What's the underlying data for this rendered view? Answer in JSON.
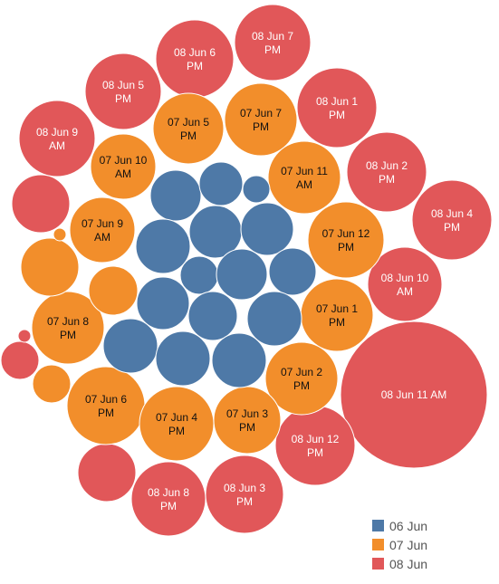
{
  "chart_data": {
    "type": "bubble",
    "title": "",
    "colors": {
      "06 Jun": "#4e79a7",
      "07 Jun": "#f28e2b",
      "08 Jun": "#e15759"
    },
    "legend": {
      "placement": "bottom-right",
      "entries": [
        "06 Jun",
        "07 Jun",
        "08 Jun"
      ]
    },
    "bubbles": [
      {
        "label": "08 Jun 11 AM",
        "group": "08 Jun",
        "value": 6500
      },
      {
        "label": "08 Jun 7 PM",
        "group": "08 Jun",
        "value": 1840
      },
      {
        "label": "08 Jun 6 PM",
        "group": "08 Jun",
        "value": 1840
      },
      {
        "label": "08 Jun 5 PM",
        "group": "08 Jun",
        "value": 1840
      },
      {
        "label": "08 Jun 1 PM",
        "group": "08 Jun",
        "value": 1840
      },
      {
        "label": "08 Jun 9 AM",
        "group": "08 Jun",
        "value": 1760
      },
      {
        "label": "08 Jun 2 PM",
        "group": "08 Jun",
        "value": 1920
      },
      {
        "label": "08 Jun 4 PM",
        "group": "08 Jun",
        "value": 1840
      },
      {
        "label": "08 Jun 10 AM",
        "group": "08 Jun",
        "value": 1640
      },
      {
        "label": "08 Jun 12 PM",
        "group": "08 Jun",
        "value": 1840
      },
      {
        "label": "08 Jun 8 PM",
        "group": "08 Jun",
        "value": 1680
      },
      {
        "label": "08 Jun 3 PM",
        "group": "08 Jun",
        "value": 1840
      },
      {
        "label": "",
        "group": "08 Jun",
        "value": 1000
      },
      {
        "label": "",
        "group": "08 Jun",
        "value": 870
      },
      {
        "label": "",
        "group": "08 Jun",
        "value": 420
      },
      {
        "label": "",
        "group": "08 Jun",
        "value": 40
      },
      {
        "label": "07 Jun 7 PM",
        "group": "07 Jun",
        "value": 1600
      },
      {
        "label": "07 Jun 5 PM",
        "group": "07 Jun",
        "value": 1520
      },
      {
        "label": "07 Jun 10 AM",
        "group": "07 Jun",
        "value": 1300
      },
      {
        "label": "07 Jun 11 AM",
        "group": "07 Jun",
        "value": 1600
      },
      {
        "label": "07 Jun 9 AM",
        "group": "07 Jun",
        "value": 1300
      },
      {
        "label": "07 Jun 12 PM",
        "group": "07 Jun",
        "value": 1600
      },
      {
        "label": "07 Jun 1 PM",
        "group": "07 Jun",
        "value": 1600
      },
      {
        "label": "07 Jun 8 PM",
        "group": "07 Jun",
        "value": 1300
      },
      {
        "label": "07 Jun 2 PM",
        "group": "07 Jun",
        "value": 1600
      },
      {
        "label": "07 Jun 6 PM",
        "group": "07 Jun",
        "value": 1640
      },
      {
        "label": "07 Jun 4 PM",
        "group": "07 Jun",
        "value": 1600
      },
      {
        "label": "07 Jun 3 PM",
        "group": "07 Jun",
        "value": 1340
      },
      {
        "label": "",
        "group": "07 Jun",
        "value": 1000
      },
      {
        "label": "",
        "group": "07 Jun",
        "value": 720
      },
      {
        "label": "",
        "group": "07 Jun",
        "value": 440
      },
      {
        "label": "",
        "group": "07 Jun",
        "value": 50
      },
      {
        "label": "",
        "group": "06 Jun",
        "value": 760
      },
      {
        "label": "",
        "group": "06 Jun",
        "value": 550
      },
      {
        "label": "",
        "group": "06 Jun",
        "value": 230
      },
      {
        "label": "",
        "group": "06 Jun",
        "value": 850
      },
      {
        "label": "",
        "group": "06 Jun",
        "value": 820
      },
      {
        "label": "",
        "group": "06 Jun",
        "value": 790
      },
      {
        "label": "",
        "group": "06 Jun",
        "value": 440
      },
      {
        "label": "",
        "group": "06 Jun",
        "value": 780
      },
      {
        "label": "",
        "group": "06 Jun",
        "value": 660
      },
      {
        "label": "",
        "group": "06 Jun",
        "value": 850
      },
      {
        "label": "",
        "group": "06 Jun",
        "value": 670
      },
      {
        "label": "",
        "group": "06 Jun",
        "value": 850
      },
      {
        "label": "",
        "group": "06 Jun",
        "value": 850
      },
      {
        "label": "",
        "group": "06 Jun",
        "value": 870
      },
      {
        "label": "",
        "group": "06 Jun",
        "value": 40
      }
    ]
  }
}
